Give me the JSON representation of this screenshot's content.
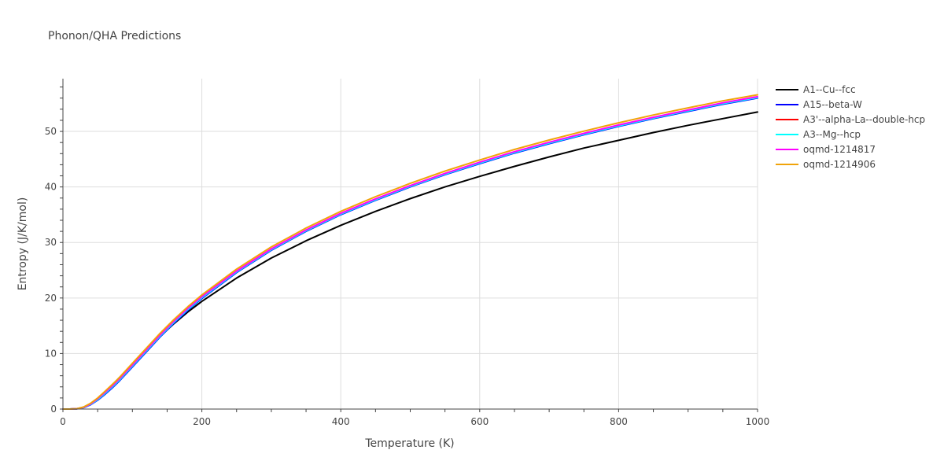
{
  "chart_data": {
    "type": "line",
    "title": "Phonon/QHA Predictions",
    "xlabel": "Temperature (K)",
    "ylabel": "Entropy (J/K/mol)",
    "xlim": [
      0,
      1000
    ],
    "ylim": [
      0,
      59.5
    ],
    "xticks": [
      0,
      200,
      400,
      600,
      800,
      1000
    ],
    "yticks": [
      0,
      10,
      20,
      30,
      40,
      50
    ],
    "grid": true,
    "legend_position": "top-right",
    "series": [
      {
        "name": "A1--Cu--fcc",
        "color": "#000000",
        "x": [
          0,
          10,
          20,
          30,
          40,
          50,
          60,
          70,
          80,
          100,
          120,
          140,
          160,
          180,
          200,
          250,
          300,
          350,
          400,
          450,
          500,
          550,
          600,
          650,
          700,
          750,
          800,
          850,
          900,
          950,
          1000
        ],
        "y": [
          0,
          0.0,
          0.05,
          0.35,
          1.0,
          1.9,
          3.0,
          4.2,
          5.5,
          8.0,
          10.6,
          13.1,
          15.4,
          17.5,
          19.4,
          23.6,
          27.2,
          30.3,
          33.1,
          35.6,
          37.9,
          40.0,
          41.9,
          43.7,
          45.4,
          47.0,
          48.4,
          49.8,
          51.1,
          52.3,
          53.5
        ]
      },
      {
        "name": "A15--beta-W",
        "color": "#0000ff",
        "x": [
          0,
          10,
          20,
          30,
          40,
          50,
          60,
          70,
          80,
          100,
          120,
          140,
          160,
          180,
          200,
          250,
          300,
          350,
          400,
          450,
          500,
          550,
          600,
          650,
          700,
          750,
          800,
          850,
          900,
          950,
          1000
        ],
        "y": [
          0,
          0.0,
          0.04,
          0.25,
          0.8,
          1.6,
          2.6,
          3.7,
          4.9,
          7.6,
          10.3,
          13.0,
          15.5,
          17.8,
          19.9,
          24.6,
          28.6,
          32.0,
          35.0,
          37.6,
          40.0,
          42.2,
          44.2,
          46.1,
          47.8,
          49.4,
          50.9,
          52.3,
          53.6,
          54.9,
          56.0
        ]
      },
      {
        "name": "A3'--alpha-La--double-hcp",
        "color": "#ff0000",
        "x": [
          0,
          10,
          20,
          30,
          40,
          50,
          60,
          70,
          80,
          100,
          120,
          140,
          160,
          180,
          200,
          250,
          300,
          350,
          400,
          450,
          500,
          550,
          600,
          650,
          700,
          750,
          800,
          850,
          900,
          950,
          1000
        ],
        "y": [
          0,
          0.0,
          0.05,
          0.3,
          0.9,
          1.8,
          2.9,
          4.0,
          5.2,
          7.9,
          10.6,
          13.3,
          15.8,
          18.1,
          20.2,
          24.8,
          28.8,
          32.2,
          35.2,
          37.8,
          40.2,
          42.4,
          44.4,
          46.3,
          48.0,
          49.6,
          51.1,
          52.5,
          53.8,
          55.1,
          56.2
        ]
      },
      {
        "name": "A3--Mg--hcp",
        "color": "#00ffff",
        "x": [
          0,
          10,
          20,
          30,
          40,
          50,
          60,
          70,
          80,
          100,
          120,
          140,
          160,
          180,
          200,
          250,
          300,
          350,
          400,
          450,
          500,
          550,
          600,
          650,
          700,
          750,
          800,
          850,
          900,
          950,
          1000
        ],
        "y": [
          0,
          0.0,
          0.04,
          0.28,
          0.85,
          1.7,
          2.75,
          3.85,
          5.05,
          7.75,
          10.45,
          13.15,
          15.65,
          17.95,
          20.05,
          24.7,
          28.7,
          32.1,
          35.1,
          37.7,
          40.1,
          42.3,
          44.3,
          46.2,
          47.9,
          49.5,
          51.0,
          52.4,
          53.7,
          55.0,
          56.1
        ]
      },
      {
        "name": "oqmd-1214817",
        "color": "#ff00ff",
        "x": [
          0,
          10,
          20,
          30,
          40,
          50,
          60,
          70,
          80,
          100,
          120,
          140,
          160,
          180,
          200,
          250,
          300,
          350,
          400,
          450,
          500,
          550,
          600,
          650,
          700,
          750,
          800,
          850,
          900,
          950,
          1000
        ],
        "y": [
          0,
          0.0,
          0.05,
          0.32,
          0.92,
          1.85,
          2.95,
          4.05,
          5.25,
          7.95,
          10.65,
          13.35,
          15.85,
          18.15,
          20.25,
          24.85,
          28.85,
          32.25,
          35.25,
          37.85,
          40.25,
          42.45,
          44.45,
          46.35,
          48.05,
          49.65,
          51.15,
          52.55,
          53.85,
          55.15,
          56.25
        ]
      },
      {
        "name": "oqmd-1214906",
        "color": "#f0a30a",
        "x": [
          0,
          10,
          20,
          30,
          40,
          50,
          60,
          70,
          80,
          100,
          120,
          140,
          160,
          180,
          200,
          250,
          300,
          350,
          400,
          450,
          500,
          550,
          600,
          650,
          700,
          750,
          800,
          850,
          900,
          950,
          1000
        ],
        "y": [
          0,
          0.0,
          0.06,
          0.38,
          1.05,
          2.0,
          3.15,
          4.3,
          5.5,
          8.25,
          10.95,
          13.65,
          16.15,
          18.45,
          20.55,
          25.2,
          29.2,
          32.6,
          35.6,
          38.25,
          40.65,
          42.85,
          44.85,
          46.75,
          48.45,
          50.05,
          51.55,
          52.95,
          54.25,
          55.5,
          56.6
        ]
      }
    ]
  }
}
